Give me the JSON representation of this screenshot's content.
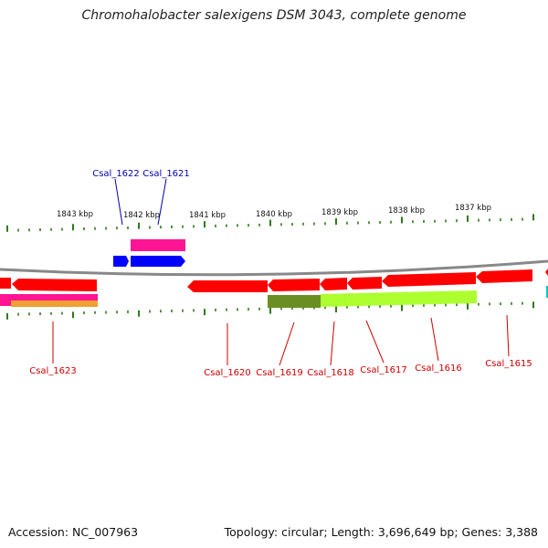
{
  "title": "Chromohalobacter salexigens DSM 3043, complete genome",
  "footer": {
    "accession": "Accession: NC_007963",
    "topology": "Topology: circular; Length: 3,696,649 bp; Genes: 3,388"
  },
  "scale": {
    "ticks": [
      "1843 kbp",
      "1842 kbp",
      "1841 kbp",
      "1840 kbp",
      "1839 kbp",
      "1838 kbp",
      "1837 kbp"
    ]
  },
  "colors": {
    "forward_gene": "#ff0000",
    "blue_gene": "#0000ff",
    "label_red": "#cc0000",
    "label_blue": "#0000aa",
    "backbone": "#888888",
    "tick_green": "#2d7a1a"
  },
  "genes": {
    "top": [
      "Csal_1622",
      "Csal_1621"
    ],
    "bottom": [
      "Csal_1623",
      "Csal_1620",
      "Csal_1619",
      "Csal_1618",
      "Csal_1617",
      "Csal_1616",
      "Csal_1615"
    ]
  }
}
